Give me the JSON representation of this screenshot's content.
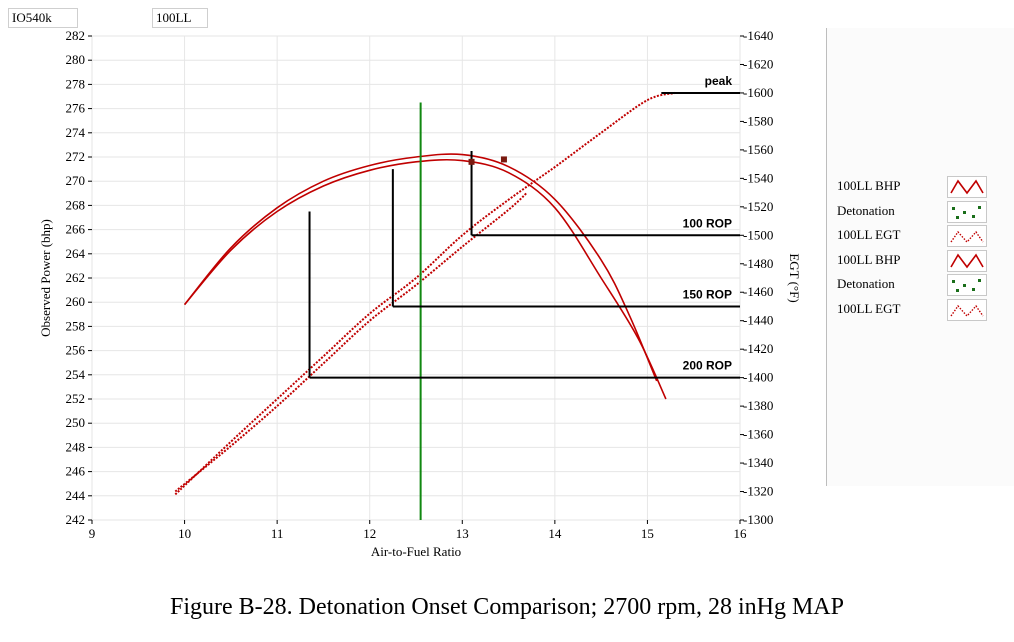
{
  "header": {
    "engine": "IO540k",
    "fuel": "100LL"
  },
  "caption": "Figure B-28.  Detonation Onset Comparison; 2700 rpm, 28 inHg MAP",
  "legend": [
    {
      "label": "100LL BHP",
      "swatch": "bhp"
    },
    {
      "label": "Detonation",
      "swatch": "det"
    },
    {
      "label": "100LL EGT",
      "swatch": "egt"
    },
    {
      "label": "100LL BHP",
      "swatch": "bhp"
    },
    {
      "label": "Detonation",
      "swatch": "det"
    },
    {
      "label": "100LL EGT",
      "swatch": "egt"
    }
  ],
  "colors": {
    "series": "#c00000",
    "detonation": "#1a6e1a",
    "green_line": "#118811",
    "annotation": "#000000"
  },
  "chart_data": {
    "type": "line",
    "xlabel": "Air-to-Fuel Ratio",
    "ylabel": "Observed Power (bhp)",
    "y2label": "EGT (°F)",
    "xlim": [
      9,
      16
    ],
    "ylim": [
      242,
      282
    ],
    "y2lim": [
      1300,
      1640
    ],
    "xticks": [
      9,
      10,
      11,
      12,
      13,
      14,
      15,
      16
    ],
    "yticks": [
      242,
      244,
      246,
      248,
      250,
      252,
      254,
      256,
      258,
      260,
      262,
      264,
      266,
      268,
      270,
      272,
      274,
      276,
      278,
      280,
      282
    ],
    "y2ticks": [
      1300,
      1320,
      1340,
      1360,
      1380,
      1400,
      1420,
      1440,
      1460,
      1480,
      1500,
      1520,
      1540,
      1560,
      1580,
      1600,
      1620,
      1640
    ],
    "grid": true,
    "series": [
      {
        "name": "100LL BHP",
        "axis": "left",
        "style": "solid",
        "x": [
          10.0,
          10.5,
          11.0,
          11.5,
          12.0,
          12.5,
          13.0,
          13.5,
          14.0,
          14.5,
          14.8,
          15.1
        ],
        "y": [
          259.8,
          264.5,
          267.8,
          270.0,
          271.3,
          272.0,
          272.2,
          271.2,
          268.5,
          263.5,
          259.0,
          253.5
        ]
      },
      {
        "name": "100LL BHP",
        "axis": "left",
        "style": "solid",
        "x": [
          10.0,
          10.5,
          11.0,
          11.5,
          12.0,
          12.5,
          13.0,
          13.5,
          14.0,
          14.5,
          14.9,
          15.2
        ],
        "y": [
          259.8,
          264.3,
          267.5,
          269.6,
          270.9,
          271.6,
          271.7,
          270.7,
          267.8,
          262.0,
          257.0,
          252.0
        ]
      },
      {
        "name": "100LL EGT",
        "axis": "right",
        "style": "dotted",
        "x": [
          9.9,
          10.5,
          11.0,
          11.5,
          12.0,
          12.5,
          13.0,
          13.5,
          14.0,
          14.5,
          15.0,
          15.3
        ],
        "y": [
          1318,
          1355,
          1385,
          1415,
          1445,
          1470,
          1500,
          1525,
          1548,
          1572,
          1595,
          1600
        ]
      },
      {
        "name": "100LL EGT",
        "axis": "right",
        "style": "dotted",
        "x": [
          9.9,
          10.5,
          11.0,
          11.5,
          12.0,
          12.5,
          13.0,
          13.5,
          13.7
        ],
        "y": [
          1320,
          1352,
          1380,
          1410,
          1440,
          1465,
          1492,
          1518,
          1530
        ]
      }
    ],
    "detonation_points": [
      {
        "x": 13.1,
        "y": 271.6
      },
      {
        "x": 13.45,
        "y": 271.8
      }
    ],
    "vertical_line": {
      "x": 12.55,
      "y_from": 242,
      "y_to": 276.5
    },
    "annotations": [
      {
        "label": "peak",
        "x_from": 15.15,
        "x_to": 16,
        "egt": 1600
      },
      {
        "label": "100 ROP",
        "x_from": 13.1,
        "x_to": 16,
        "egt": 1500,
        "x_at_peak": 13.1,
        "bhp_top": 272.5
      },
      {
        "label": "150 ROP",
        "x_from": 12.25,
        "x_to": 16,
        "egt": 1450,
        "x_at_peak": 12.25,
        "bhp_top": 271.0
      },
      {
        "label": "200 ROP",
        "x_from": 11.35,
        "x_to": 16,
        "egt": 1400,
        "x_at_peak": 11.35,
        "bhp_top": 267.5
      }
    ]
  }
}
